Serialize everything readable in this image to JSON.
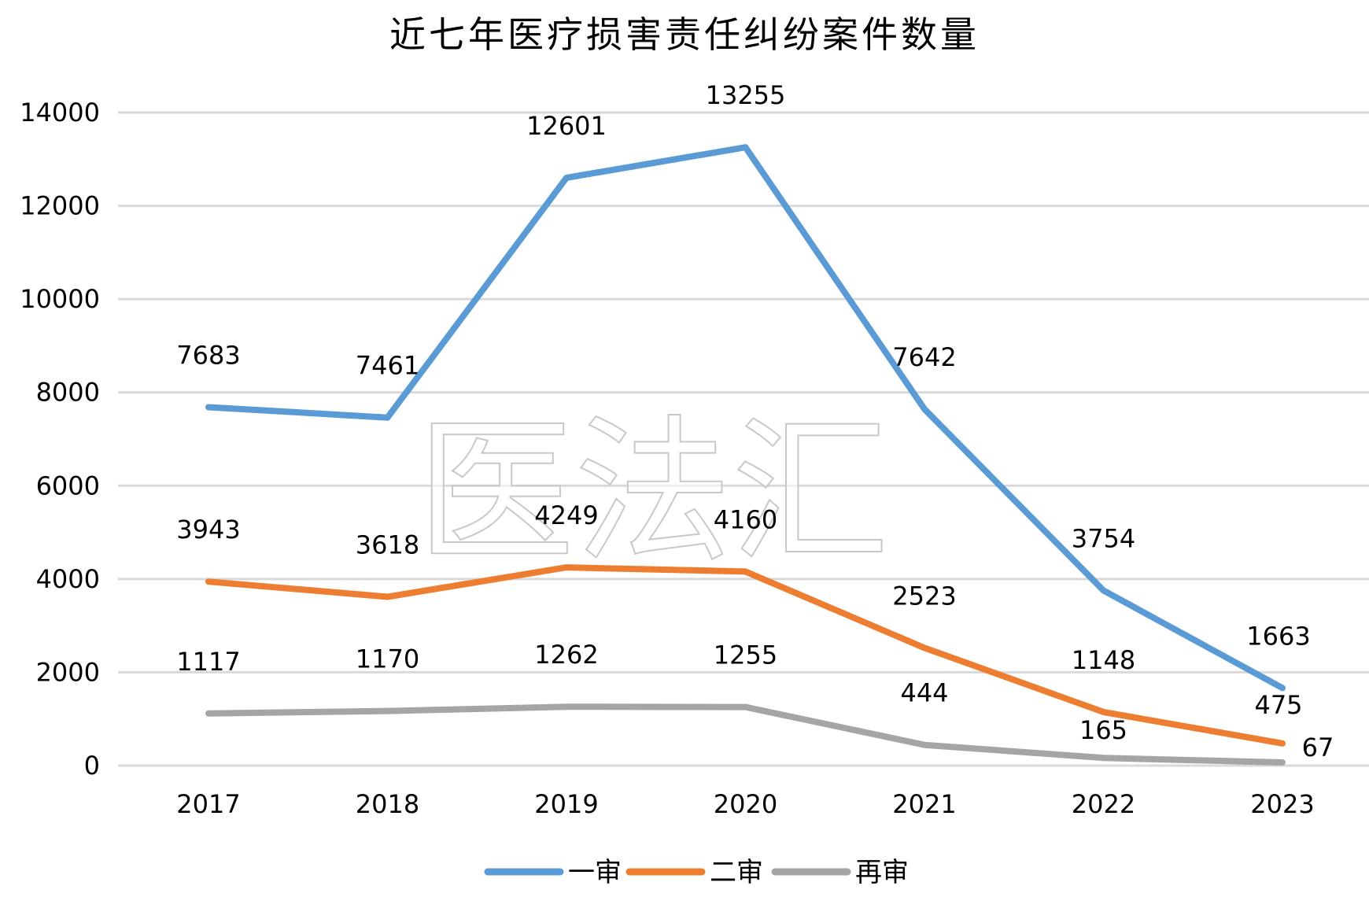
{
  "watermark": "医法汇",
  "chart_data": {
    "type": "line",
    "title": "近七年医疗损害责任纠纷案件数量",
    "categories": [
      "2017",
      "2018",
      "2019",
      "2020",
      "2021",
      "2022",
      "2023"
    ],
    "series": [
      {
        "name": "一审",
        "color": "#5b9bd5",
        "values": [
          7683,
          7461,
          12601,
          13255,
          7642,
          3754,
          1663
        ]
      },
      {
        "name": "二审",
        "color": "#ed7d31",
        "values": [
          3943,
          3618,
          4249,
          4160,
          2523,
          1148,
          475
        ]
      },
      {
        "name": "再审",
        "color": "#a5a5a5",
        "values": [
          1117,
          1170,
          1262,
          1255,
          444,
          165,
          67
        ]
      }
    ],
    "yticks": [
      "0",
      "2000",
      "4000",
      "6000",
      "8000",
      "10000",
      "12000",
      "14000"
    ],
    "ylim": [
      0,
      14000
    ],
    "grid": true,
    "legend_position": "bottom",
    "xlabel": "",
    "ylabel": ""
  }
}
